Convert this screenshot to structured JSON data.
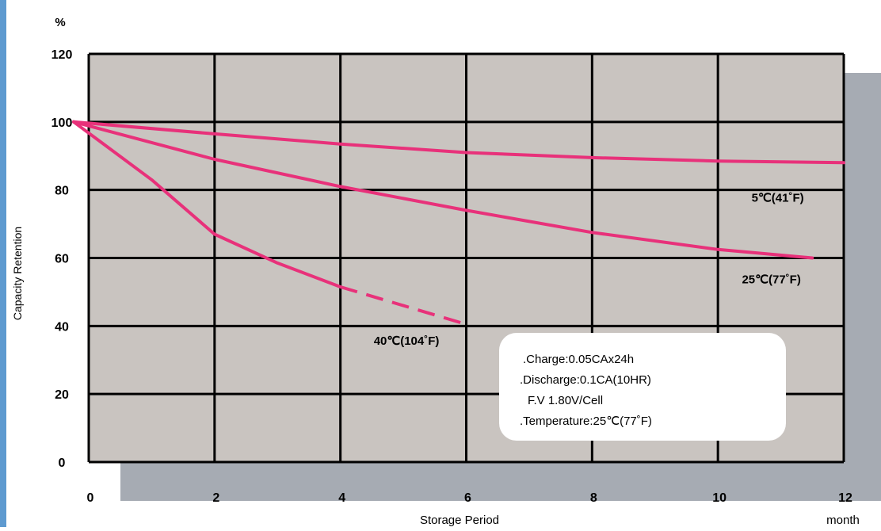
{
  "chart_data": {
    "type": "line",
    "ylabel": "Capacity Retention",
    "yunit": "%",
    "xlabel": "Storage Period",
    "xunit": "month",
    "xlim": [
      0,
      12
    ],
    "ylim": [
      0,
      120
    ],
    "xticks": [
      "0",
      "2",
      "4",
      "6",
      "8",
      "10",
      "12"
    ],
    "yticks": [
      "0",
      "20",
      "40",
      "60",
      "80",
      "100",
      "120"
    ],
    "grid": true,
    "colors": {
      "line": "#e8317a",
      "plot_bg": "#c9c4c0",
      "shadow": "#a6abb3",
      "grid": "#000000"
    },
    "series": [
      {
        "name": "5℃(41˚F)",
        "x": [
          0,
          2,
          4,
          6,
          8,
          10,
          12
        ],
        "y": [
          100,
          96.5,
          93.5,
          91,
          89.5,
          88.5,
          88
        ]
      },
      {
        "name": "25℃(77˚F)",
        "x": [
          0,
          2,
          4,
          6,
          8,
          10,
          11.5
        ],
        "y": [
          100,
          89,
          81,
          74,
          67.5,
          62.5,
          60
        ]
      },
      {
        "name": "40℃(104˚F)",
        "x": [
          0,
          1,
          2,
          3,
          4
        ],
        "y": [
          100,
          83,
          67,
          58.5,
          51.5
        ],
        "dashed_ext": {
          "x": [
            4,
            5,
            6
          ],
          "y": [
            51.5,
            46,
            40.5
          ]
        }
      }
    ],
    "annotations": [
      {
        "text": ".Charge:0.05CAx24h"
      },
      {
        "text": ".Discharge:0.1CA(10HR)"
      },
      {
        "text": "F.V 1.80V/Cell"
      },
      {
        "text": ".Temperature:25℃(77˚F)"
      }
    ]
  }
}
